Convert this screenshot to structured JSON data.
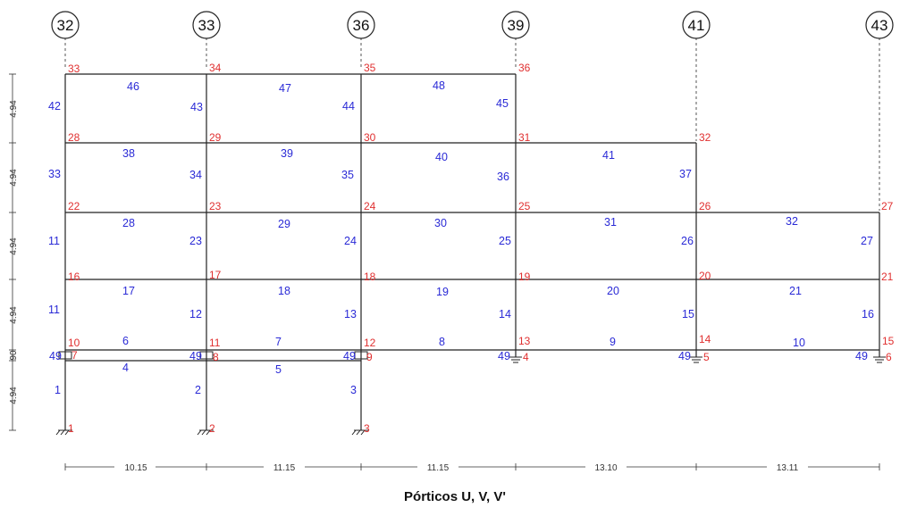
{
  "diagram": {
    "caption": "Pórticos U, V, V'",
    "colors": {
      "nodes": "#e03030",
      "elements": "#2a2ad6",
      "lines": "#222222"
    },
    "axes": [
      "32",
      "33",
      "36",
      "39",
      "41",
      "43"
    ],
    "bay_widths": [
      "10.15",
      "11.15",
      "11.15",
      "13.10",
      "13.11"
    ],
    "level_heights": [
      "4.94",
      "90",
      "4.94",
      "4.94",
      "4.94",
      "4.94"
    ],
    "node_labels": [
      "1",
      "2",
      "3",
      "7",
      "8",
      "9",
      "4",
      "5",
      "6",
      "10",
      "11",
      "12",
      "13",
      "14",
      "15",
      "16",
      "17",
      "18",
      "19",
      "20",
      "21",
      "22",
      "23",
      "24",
      "25",
      "26",
      "27",
      "28",
      "29",
      "30",
      "31",
      "32",
      "33",
      "34",
      "35",
      "36"
    ],
    "element_labels": [
      "1",
      "2",
      "3",
      "4",
      "5",
      "6",
      "7",
      "8",
      "9",
      "10",
      "11",
      "12",
      "13",
      "14",
      "15",
      "16",
      "17",
      "18",
      "19",
      "20",
      "21",
      "11",
      "23",
      "24",
      "25",
      "26",
      "27",
      "28",
      "29",
      "30",
      "31",
      "32",
      "33",
      "34",
      "35",
      "36",
      "37",
      "38",
      "39",
      "40",
      "41",
      "42",
      "43",
      "44",
      "45",
      "46",
      "47",
      "48"
    ],
    "link_labels": [
      "49",
      "49",
      "49",
      "49",
      "49",
      "49"
    ]
  }
}
